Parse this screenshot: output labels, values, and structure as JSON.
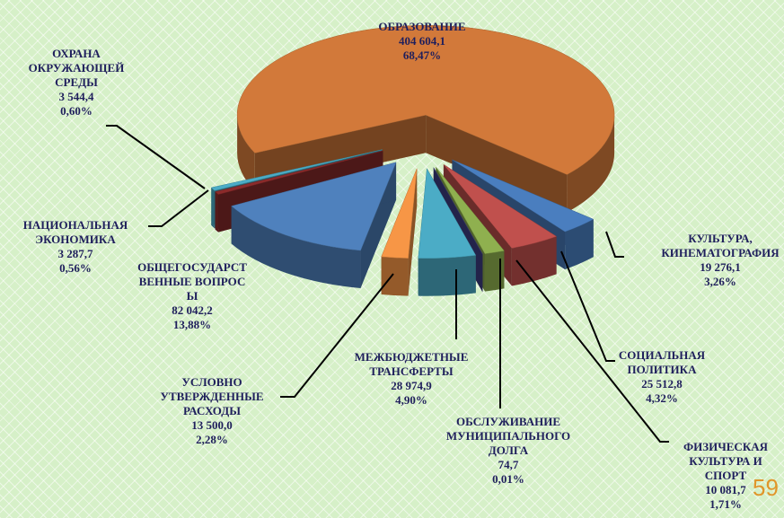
{
  "chart_data": {
    "type": "pie",
    "categories": [
      "ОБРАЗОВАНИЕ",
      "КУЛЬТУРА, КИНЕМАТОГРАФИЯ",
      "СОЦИАЛЬНАЯ ПОЛИТИКА",
      "ФИЗИЧЕСКАЯ КУЛЬТУРА И СПОРТ",
      "ОБСЛУЖИВАНИЕ МУНИЦИПАЛЬНОГО ДОЛГА",
      "МЕЖБЮДЖЕТНЫЕ ТРАНСФЕРТЫ",
      "УСЛОВНО УТВЕРЖДЕННЫЕ РАСХОДЫ",
      "ОБЩЕГОСУДАРСТВЕННЫЕ ВОПРОСЫ",
      "НАЦИОНАЛЬНАЯ ЭКОНОМИКА",
      "ОХРАНА ОКРУЖАЮЩЕЙ СРЕДЫ"
    ],
    "values": [
      404604.1,
      19276.1,
      25512.8,
      10081.7,
      74.7,
      28974.9,
      13500.0,
      82042.2,
      3287.7,
      3544.4
    ],
    "value_labels": [
      "404 604,1",
      "19 276,1",
      "25 512,8",
      "10 081,7",
      "74,7",
      "28 974,9",
      "13 500,0",
      "82 042,2",
      "3 287,7",
      "3 544,4"
    ],
    "percents": [
      68.47,
      3.26,
      4.32,
      1.71,
      0.01,
      4.9,
      2.28,
      13.88,
      0.56,
      0.6
    ],
    "percent_labels": [
      "68,47%",
      "3,26%",
      "4,32%",
      "1,71%",
      "0,01%",
      "4,90%",
      "2,28%",
      "13,88%",
      "0,56%",
      "0,60%"
    ],
    "colors": [
      "#d2793a",
      "#4a7ebf",
      "#c0504d",
      "#8fb04f",
      "#3f3f86",
      "#4bacc6",
      "#f79646",
      "#4f81bd",
      "#8b2b2b",
      "#4bacc6"
    ]
  },
  "page_number": 59
}
